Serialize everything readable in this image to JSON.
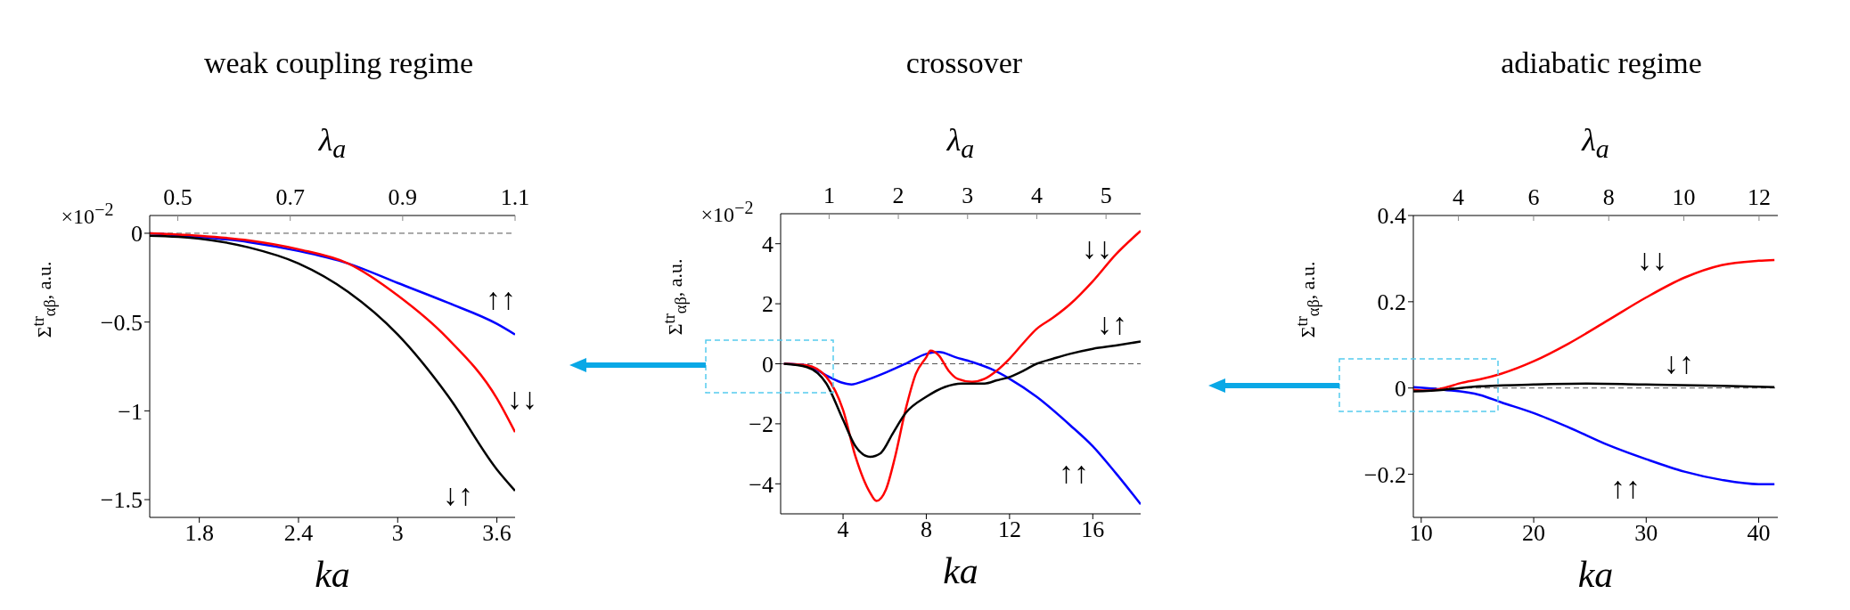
{
  "chart_data": [
    {
      "type": "line",
      "title": "weak coupling regime",
      "xlabel": "ka",
      "x2label": "λ$_{a}$",
      "ylabel": "Σ$^{tr}$$_{αβ}$, a.u.",
      "xlim": [
        1.5,
        3.71
      ],
      "xticks": [
        1.8,
        2.4,
        3,
        3.6
      ],
      "x2lim": [
        0.45,
        1.1
      ],
      "x2ticks": [
        0.5,
        0.7,
        0.9,
        1.1
      ],
      "ylim": [
        -1.6,
        0.1
      ],
      "yticks": [
        -1.5,
        -1,
        -0.5,
        0
      ],
      "series": [
        {
          "color": "#0000ff",
          "x": [
            1.5,
            1.8,
            2.1,
            2.4,
            2.7,
            3.0,
            3.3,
            3.6,
            3.71
          ],
          "values": [
            0,
            -0.02,
            -0.05,
            -0.1,
            -0.17,
            -0.28,
            -0.39,
            -0.51,
            -0.57
          ]
        },
        {
          "color": "#ff0000",
          "x": [
            1.5,
            1.8,
            2.1,
            2.4,
            2.7,
            3.0,
            3.3,
            3.6,
            3.71
          ],
          "values": [
            0,
            -0.014,
            -0.04,
            -0.09,
            -0.17,
            -0.35,
            -0.59,
            -0.93,
            -1.12
          ]
        },
        {
          "color": "#000000",
          "x": [
            1.5,
            1.8,
            2.1,
            2.4,
            2.7,
            3.0,
            3.3,
            3.6,
            3.71
          ],
          "values": [
            -0.014,
            -0.03,
            -0.08,
            -0.17,
            -0.33,
            -0.57,
            -0.91,
            -1.33,
            -1.45
          ]
        }
      ],
      "ref_lines": [
        {
          "axis": "y",
          "value": 0,
          "color": "#555555",
          "line_style": "dashed"
        }
      ],
      "annotations": [
        "×10$^{−2}$",
        "↑↑",
        "↓↓",
        "↓↑"
      ]
    },
    {
      "type": "line",
      "title": "crossover",
      "xlabel": "ka",
      "x2label": "λ$_{a}$",
      "ylabel": "Σ$^{tr}$$_{αβ}$, a.u.",
      "xlim": [
        1,
        18.3
      ],
      "xticks": [
        4,
        8,
        12,
        16
      ],
      "x2lim": [
        0.3,
        5.5
      ],
      "x2ticks": [
        1,
        2,
        3,
        4,
        5
      ],
      "ylim": [
        -5,
        5
      ],
      "yticks": [
        -4,
        -2,
        0,
        2,
        4
      ],
      "series": [
        {
          "color": "#0000ff",
          "x": [
            1.16,
            2.26,
            3.2,
            4,
            4.4,
            5.1,
            6.1,
            7,
            8,
            8.6,
            9.4,
            10.2,
            11.1,
            12,
            13.3,
            14.9,
            16,
            17.1,
            18.3
          ],
          "values": [
            0,
            -0.05,
            -0.39,
            -0.64,
            -0.69,
            -0.55,
            -0.28,
            0,
            0.33,
            0.39,
            0.22,
            0.06,
            -0.17,
            -0.5,
            -1.1,
            -2.04,
            -2.75,
            -3.64,
            -4.68
          ]
        },
        {
          "color": "#ff0000",
          "x": [
            1.16,
            2.26,
            3.2,
            4,
            4.6,
            5.3,
            5.6,
            6.06,
            6.5,
            7,
            7.5,
            8,
            8.2,
            8.6,
            9.06,
            9.5,
            10.2,
            10.8,
            11.4,
            12,
            12.7,
            13.3,
            14.1,
            14.9,
            16,
            17.1,
            18.3
          ],
          "values": [
            0,
            -0.05,
            -0.44,
            -1.54,
            -3.1,
            -4.3,
            -4.57,
            -4.19,
            -3.1,
            -1.54,
            -0.33,
            0.22,
            0.44,
            0.28,
            -0.22,
            -0.5,
            -0.6,
            -0.5,
            -0.22,
            0.17,
            0.72,
            1.16,
            1.54,
            1.98,
            2.75,
            3.64,
            4.43
          ]
        },
        {
          "color": "#000000",
          "x": [
            1.16,
            2.26,
            3.2,
            4,
            4.6,
            5.3,
            5.8,
            6.4,
            7,
            8,
            8.9,
            9.7,
            10.8,
            11.4,
            12,
            12.7,
            13.3,
            14.1,
            14.9,
            16,
            17.1,
            18.3
          ],
          "values": [
            0,
            -0.11,
            -0.66,
            -1.87,
            -2.75,
            -3.1,
            -2.98,
            -2.31,
            -1.65,
            -1.1,
            -0.77,
            -0.66,
            -0.66,
            -0.55,
            -0.44,
            -0.22,
            0,
            0.17,
            0.33,
            0.5,
            0.61,
            0.74
          ]
        }
      ],
      "ref_lines": [
        {
          "axis": "y",
          "value": 0,
          "color": "#555555",
          "line_style": "dashed"
        }
      ],
      "annotations": [
        "×10$^{−2}$",
        "↓↓",
        "↓↑",
        "↑↑"
      ]
    },
    {
      "type": "line",
      "title": "adiabatic regime",
      "xlabel": "ka",
      "x2label": "λ$_{a}$",
      "ylabel": "Σ$^{tr}$$_{αβ}$, a.u.",
      "xlim": [
        9.3,
        41.7
      ],
      "xticks": [
        10,
        20,
        30,
        40
      ],
      "x2lim": [
        2.8,
        12.5
      ],
      "x2ticks": [
        4,
        6,
        8,
        10,
        12
      ],
      "ylim": [
        -0.3,
        0.4
      ],
      "yticks": [
        -0.2,
        0,
        0.2,
        0.4
      ],
      "series": [
        {
          "color": "#0000ff",
          "x": [
            9.3,
            12,
            15.2,
            17.1,
            20,
            23.1,
            26.6,
            30,
            33.4,
            36.7,
            40,
            41.4
          ],
          "values": [
            0.002,
            -0.004,
            -0.016,
            -0.033,
            -0.058,
            -0.091,
            -0.132,
            -0.165,
            -0.194,
            -0.213,
            -0.223,
            -0.223
          ]
        },
        {
          "color": "#ff0000",
          "x": [
            9.3,
            10.7,
            12,
            13.6,
            15.2,
            17.1,
            20,
            23.1,
            26.6,
            30,
            33.4,
            36.7,
            40,
            41.4
          ],
          "values": [
            -0.004,
            -0.006,
            0,
            0.012,
            0.02,
            0.033,
            0.062,
            0.103,
            0.157,
            0.21,
            0.256,
            0.285,
            0.295,
            0.297
          ]
        },
        {
          "color": "#000000",
          "x": [
            9.3,
            12,
            15.2,
            20,
            24.7,
            30,
            36.7,
            41.4
          ],
          "values": [
            -0.008,
            -0.004,
            0.004,
            0.008,
            0.01,
            0.008,
            0.005,
            0.002
          ]
        }
      ],
      "ref_lines": [
        {
          "axis": "y",
          "value": 0,
          "color": "#555555",
          "line_style": "dashed"
        }
      ],
      "annotations": [
        "↓↓",
        "↓↑",
        "↑↑"
      ]
    }
  ]
}
